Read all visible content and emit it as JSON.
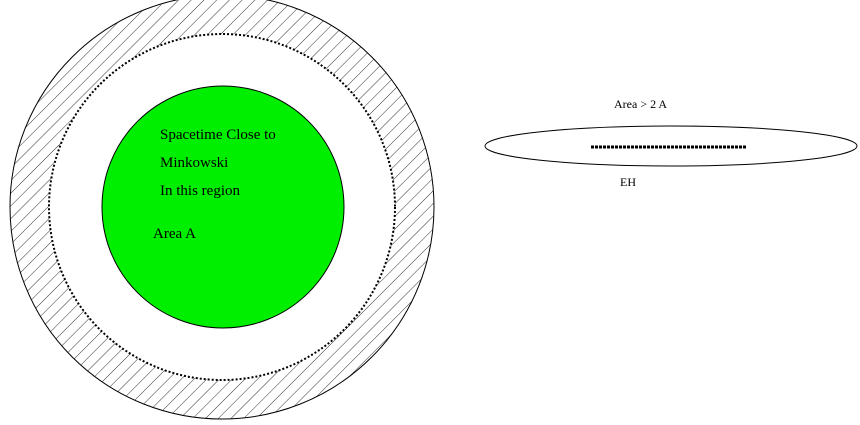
{
  "colors": {
    "background": "#ffffff",
    "stroke": "#000000",
    "inner_region_fill": "#00ee00",
    "hatch": "#000000"
  },
  "left_figure": {
    "inner_label_line1": "Spacetime Close to",
    "inner_label_line2": "Minkowski",
    "inner_label_line3": "In this region",
    "area_label": "Area A"
  },
  "right_figure": {
    "area_label": "Area > 2 A",
    "horizon_label": "EH"
  }
}
